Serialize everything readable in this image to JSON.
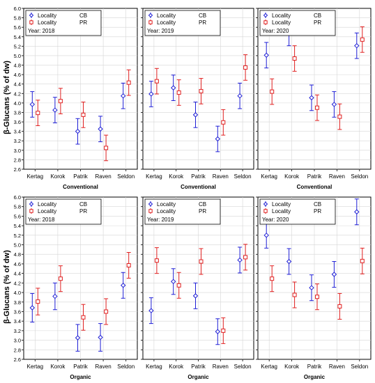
{
  "figure": {
    "ylabel": "β-Glucans (% of dw)",
    "colors": {
      "CB": "#1f1fd6",
      "PR": "#e02020",
      "grid": "#d6d6d6"
    }
  },
  "chart_data": [
    {
      "type": "scatter",
      "title": "Year: 2018",
      "xlabel": "Conventional",
      "ylabel": "β-Glucans (% of dw)",
      "categories": [
        "Kertag",
        "Korok",
        "Patrik",
        "Raven",
        "Seldon"
      ],
      "ylim": [
        2.6,
        6.0
      ],
      "yticks": [
        2.6,
        2.8,
        3.0,
        3.2,
        3.4,
        3.6,
        3.8,
        4.0,
        4.2,
        4.4,
        4.6,
        4.8,
        5.0,
        5.2,
        5.4,
        5.6,
        5.8,
        6.0
      ],
      "grid": true,
      "legend": "top-left",
      "series": [
        {
          "name": "Locality  CB",
          "values": [
            3.97,
            3.85,
            3.4,
            3.45,
            4.15
          ],
          "lower": [
            3.7,
            3.58,
            3.13,
            3.18,
            3.88
          ],
          "upper": [
            4.24,
            4.12,
            3.67,
            3.72,
            4.42
          ]
        },
        {
          "name": "Locality  PR",
          "values": [
            3.79,
            4.04,
            3.75,
            3.05,
            4.43
          ],
          "lower": [
            3.52,
            3.77,
            3.48,
            2.78,
            4.16
          ],
          "upper": [
            4.06,
            4.31,
            4.02,
            3.32,
            4.7
          ]
        }
      ]
    },
    {
      "type": "scatter",
      "title": "Year: 2019",
      "xlabel": "Conventional",
      "ylabel": "",
      "categories": [
        "Kertag",
        "Korok",
        "Patrik",
        "Raven",
        "Seldon"
      ],
      "ylim": [
        2.6,
        6.0
      ],
      "grid": true,
      "legend": "top-left",
      "series": [
        {
          "name": "Locality  CB",
          "values": [
            4.19,
            4.32,
            3.75,
            3.24,
            4.15
          ],
          "lower": [
            3.92,
            4.05,
            3.48,
            2.97,
            3.88
          ],
          "upper": [
            4.46,
            4.59,
            4.02,
            3.51,
            4.42
          ]
        },
        {
          "name": "Locality  PR",
          "values": [
            4.46,
            4.22,
            4.25,
            3.59,
            4.75
          ],
          "lower": [
            4.19,
            3.95,
            3.98,
            3.32,
            4.48
          ],
          "upper": [
            4.73,
            4.49,
            4.52,
            3.86,
            5.02
          ]
        }
      ]
    },
    {
      "type": "scatter",
      "title": "Year: 2020",
      "xlabel": "Conventional",
      "ylabel": "",
      "categories": [
        "Kertag",
        "Korok",
        "Patrik",
        "Raven",
        "Seldon"
      ],
      "ylim": [
        2.6,
        6.0
      ],
      "grid": true,
      "legend": "top-left",
      "series": [
        {
          "name": "Locality  CB",
          "values": [
            5.01,
            5.48,
            4.11,
            3.97,
            5.21
          ],
          "lower": [
            4.74,
            5.21,
            3.84,
            3.7,
            4.94
          ],
          "upper": [
            5.28,
            5.75,
            4.38,
            4.24,
            5.48
          ]
        },
        {
          "name": "Locality  PR",
          "values": [
            4.24,
            4.94,
            3.9,
            3.71,
            5.34
          ],
          "lower": [
            3.97,
            4.67,
            3.63,
            3.44,
            5.07
          ],
          "upper": [
            4.51,
            5.21,
            4.17,
            3.98,
            5.61
          ]
        }
      ]
    },
    {
      "type": "scatter",
      "title": "Year: 2018",
      "xlabel": "Organic",
      "ylabel": "β-Glucans (% of dw)",
      "categories": [
        "Kertag",
        "Korok",
        "Patrik",
        "Raven",
        "Seldon"
      ],
      "ylim": [
        2.6,
        6.0
      ],
      "yticks": [
        2.6,
        2.8,
        3.0,
        3.2,
        3.4,
        3.6,
        3.8,
        4.0,
        4.2,
        4.4,
        4.6,
        4.8,
        5.0,
        5.2,
        5.4,
        5.6,
        5.8,
        6.0
      ],
      "grid": true,
      "legend": "top-left",
      "series": [
        {
          "name": "Locality  CB",
          "values": [
            3.68,
            3.92,
            3.05,
            3.06,
            4.15
          ],
          "lower": [
            3.38,
            3.64,
            2.77,
            2.77,
            3.88
          ],
          "upper": [
            3.98,
            4.2,
            3.33,
            3.35,
            4.42
          ]
        },
        {
          "name": "Locality  PR",
          "values": [
            3.81,
            4.29,
            3.48,
            3.6,
            4.57
          ],
          "lower": [
            3.53,
            4.02,
            3.21,
            3.33,
            4.3
          ],
          "upper": [
            4.09,
            4.56,
            3.75,
            3.87,
            4.84
          ]
        }
      ]
    },
    {
      "type": "scatter",
      "title": "Year: 2019",
      "xlabel": "Organic",
      "ylabel": "",
      "categories": [
        "Kertag",
        "Korok",
        "Patrik",
        "Raven",
        "Seldon"
      ],
      "ylim": [
        2.6,
        6.0
      ],
      "grid": true,
      "legend": "top-left",
      "series": [
        {
          "name": "Locality  CB",
          "values": [
            3.62,
            4.23,
            3.93,
            3.18,
            4.68
          ],
          "lower": [
            3.35,
            3.96,
            3.66,
            2.91,
            4.41
          ],
          "upper": [
            3.89,
            4.5,
            4.2,
            3.45,
            4.95
          ]
        },
        {
          "name": "Locality  PR",
          "values": [
            4.67,
            4.15,
            4.65,
            3.2,
            4.74
          ],
          "lower": [
            4.4,
            3.88,
            4.38,
            2.93,
            4.47
          ],
          "upper": [
            4.94,
            4.42,
            4.92,
            3.47,
            5.01
          ]
        }
      ]
    },
    {
      "type": "scatter",
      "title": "Year: 2020",
      "xlabel": "Organic",
      "ylabel": "",
      "categories": [
        "Kertag",
        "Korok",
        "Patrik",
        "Raven",
        "Seldon"
      ],
      "ylim": [
        2.6,
        6.0
      ],
      "grid": true,
      "legend": "top-left",
      "series": [
        {
          "name": "Locality  CB",
          "values": [
            5.2,
            4.65,
            4.1,
            4.38,
            5.69
          ],
          "lower": [
            4.93,
            4.38,
            3.83,
            4.11,
            5.42
          ],
          "upper": [
            5.47,
            4.92,
            4.37,
            4.65,
            5.96
          ]
        },
        {
          "name": "Locality  PR",
          "values": [
            4.29,
            3.95,
            3.91,
            3.71,
            4.66
          ],
          "lower": [
            4.02,
            3.68,
            3.64,
            3.44,
            4.39
          ],
          "upper": [
            4.56,
            4.22,
            4.18,
            3.98,
            4.93
          ]
        }
      ]
    }
  ]
}
